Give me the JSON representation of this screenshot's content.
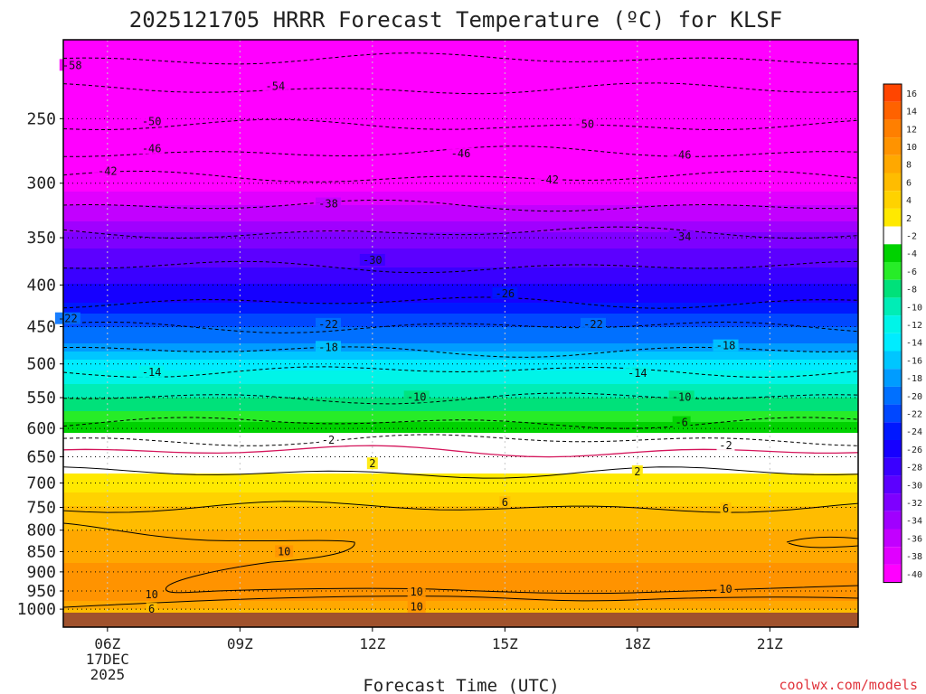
{
  "title": "2025121705 HRRR Forecast Temperature (ºC) for KLSF",
  "xlabel": "Forecast Time (UTC)",
  "watermark": "coolwx.com/models",
  "chart_data": {
    "type": "heatmap",
    "title": "2025121705 HRRR Forecast Temperature (ºC) for KLSF",
    "xlabel": "Forecast Time (UTC)",
    "ylabel": "",
    "x_range_hours": [
      5,
      23
    ],
    "x_ticks": [
      {
        "hour": 6,
        "label": "06Z",
        "sublabel": [
          "17DEC",
          "2025"
        ]
      },
      {
        "hour": 9,
        "label": "09Z"
      },
      {
        "hour": 12,
        "label": "12Z"
      },
      {
        "hour": 15,
        "label": "15Z"
      },
      {
        "hour": 18,
        "label": "18Z"
      },
      {
        "hour": 21,
        "label": "21Z"
      }
    ],
    "y_axis": "pressure (hPa), log scale, inverted",
    "y_ticks": [
      250,
      300,
      350,
      400,
      450,
      500,
      550,
      600,
      650,
      700,
      750,
      800,
      850,
      900,
      950,
      1000
    ],
    "pressure_levels": [
      200,
      215,
      230,
      250,
      270,
      290,
      300,
      320,
      340,
      350,
      370,
      400,
      420,
      450,
      470,
      500,
      520,
      550,
      570,
      600,
      620,
      650,
      680,
      700,
      720,
      750,
      780,
      800,
      830,
      850,
      880,
      900,
      925,
      950,
      975,
      1000,
      1010
    ],
    "level_temps_c": [
      -61,
      -57,
      -54,
      -51,
      -47,
      -43,
      -41,
      -38,
      -35,
      -33,
      -31,
      -28,
      -26,
      -22,
      -20,
      -15,
      -13,
      -10,
      -8,
      -5,
      -2,
      1,
      2,
      3,
      4,
      6,
      7,
      8,
      9,
      9,
      10,
      10,
      10,
      10,
      10,
      8,
      6
    ],
    "contour_interval_c": 4,
    "contour_levels": [
      -58,
      -54,
      -50,
      -46,
      -42,
      -38,
      -34,
      -30,
      -26,
      -22,
      -18,
      -14,
      -10,
      -6,
      -2,
      2,
      6,
      10
    ],
    "freezing_line_c": 0,
    "contour_labels": [
      {
        "value": "-58",
        "hour": 5.2,
        "p": 215
      },
      {
        "value": "-54",
        "hour": 9.8,
        "p": 228
      },
      {
        "value": "-50",
        "hour": 7.0,
        "p": 252
      },
      {
        "value": "-50",
        "hour": 16.8,
        "p": 254
      },
      {
        "value": "-46",
        "hour": 7.0,
        "p": 272
      },
      {
        "value": "-46",
        "hour": 14.0,
        "p": 276
      },
      {
        "value": "-46",
        "hour": 19.0,
        "p": 277
      },
      {
        "value": "-42",
        "hour": 6.0,
        "p": 290
      },
      {
        "value": "-42",
        "hour": 16.0,
        "p": 297
      },
      {
        "value": "-38",
        "hour": 11.0,
        "p": 318
      },
      {
        "value": "-34",
        "hour": 19.0,
        "p": 349
      },
      {
        "value": "-30",
        "hour": 12.0,
        "p": 373
      },
      {
        "value": "-26",
        "hour": 15.0,
        "p": 410
      },
      {
        "value": "-22",
        "hour": 5.1,
        "p": 440
      },
      {
        "value": "-22",
        "hour": 11.0,
        "p": 447
      },
      {
        "value": "-22",
        "hour": 17.0,
        "p": 447
      },
      {
        "value": "-18",
        "hour": 11.0,
        "p": 477
      },
      {
        "value": "-18",
        "hour": 20.0,
        "p": 475
      },
      {
        "value": "-14",
        "hour": 7.0,
        "p": 512
      },
      {
        "value": "-14",
        "hour": 18.0,
        "p": 513
      },
      {
        "value": "-10",
        "hour": 13.0,
        "p": 549
      },
      {
        "value": "-10",
        "hour": 19.0,
        "p": 549
      },
      {
        "value": "-6",
        "hour": 19.0,
        "p": 590
      },
      {
        "value": "-2",
        "hour": 11.0,
        "p": 620
      },
      {
        "value": "-2",
        "hour": 20.0,
        "p": 630
      },
      {
        "value": "2",
        "hour": 12.0,
        "p": 663
      },
      {
        "value": "2",
        "hour": 18.0,
        "p": 678
      },
      {
        "value": "6",
        "hour": 15.0,
        "p": 740
      },
      {
        "value": "6",
        "hour": 20.0,
        "p": 753
      },
      {
        "value": "10",
        "hour": 10.0,
        "p": 850
      },
      {
        "value": "10",
        "hour": 7.0,
        "p": 960
      },
      {
        "value": "10",
        "hour": 13.0,
        "p": 952
      },
      {
        "value": "10",
        "hour": 13.0,
        "p": 994
      },
      {
        "value": "10",
        "hour": 20.0,
        "p": 945
      },
      {
        "value": "6",
        "hour": 7.0,
        "p": 1000
      }
    ],
    "colorbar": {
      "labels": [
        "16",
        "14",
        "12",
        "10",
        "8",
        "6",
        "4",
        "2",
        "-2",
        "-4",
        "-6",
        "-8",
        "-10",
        "-12",
        "-14",
        "-16",
        "-18",
        "-20",
        "-22",
        "-24",
        "-26",
        "-28",
        "-30",
        "-32",
        "-34",
        "-36",
        "-38",
        "-40"
      ],
      "colors": [
        "#ff4500",
        "#ff6200",
        "#ff7f00",
        "#ff9300",
        "#ffa800",
        "#ffbc00",
        "#ffd200",
        "#ffe900",
        "#ffffff",
        "#00d200",
        "#27ec28",
        "#00e17a",
        "#00edb6",
        "#00f4e8",
        "#00ecff",
        "#00c6ff",
        "#009cff",
        "#0070ff",
        "#0047ff",
        "#0018ff",
        "#1600ff",
        "#3a00ff",
        "#5c00ff",
        "#7e00ff",
        "#a000ff",
        "#c200ff",
        "#e000ff",
        "#ff00ff"
      ]
    },
    "ground_color": "#a0522d"
  }
}
